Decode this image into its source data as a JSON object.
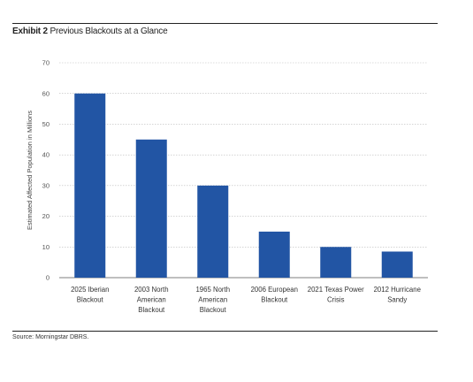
{
  "header": {
    "exhibit": "Exhibit 2",
    "title": "Previous Blackouts at a Glance"
  },
  "footer": {
    "source": "Source: Morningstar DBRS."
  },
  "colors": {
    "bar": "#2255a4",
    "grid": "#bbbbbb",
    "axis": "#555555"
  },
  "chart_data": {
    "type": "bar",
    "categories": [
      [
        "2025 Iberian",
        "Blackout"
      ],
      [
        "2003 North",
        "American",
        "Blackout"
      ],
      [
        "1965 North",
        "American",
        "Blackout"
      ],
      [
        "2006 European",
        "Blackout"
      ],
      [
        "2021 Texas Power",
        "Crisis"
      ],
      [
        "2012 Hurricane",
        "Sandy"
      ]
    ],
    "values": [
      60,
      45,
      30,
      15,
      10,
      8.5
    ],
    "ylabel": "Estimated Affected Population in Millions",
    "xlabel": "",
    "ylim": [
      0,
      70
    ],
    "yticks": [
      0,
      10,
      20,
      30,
      40,
      50,
      60,
      70
    ],
    "grid": true,
    "legend": "none"
  }
}
